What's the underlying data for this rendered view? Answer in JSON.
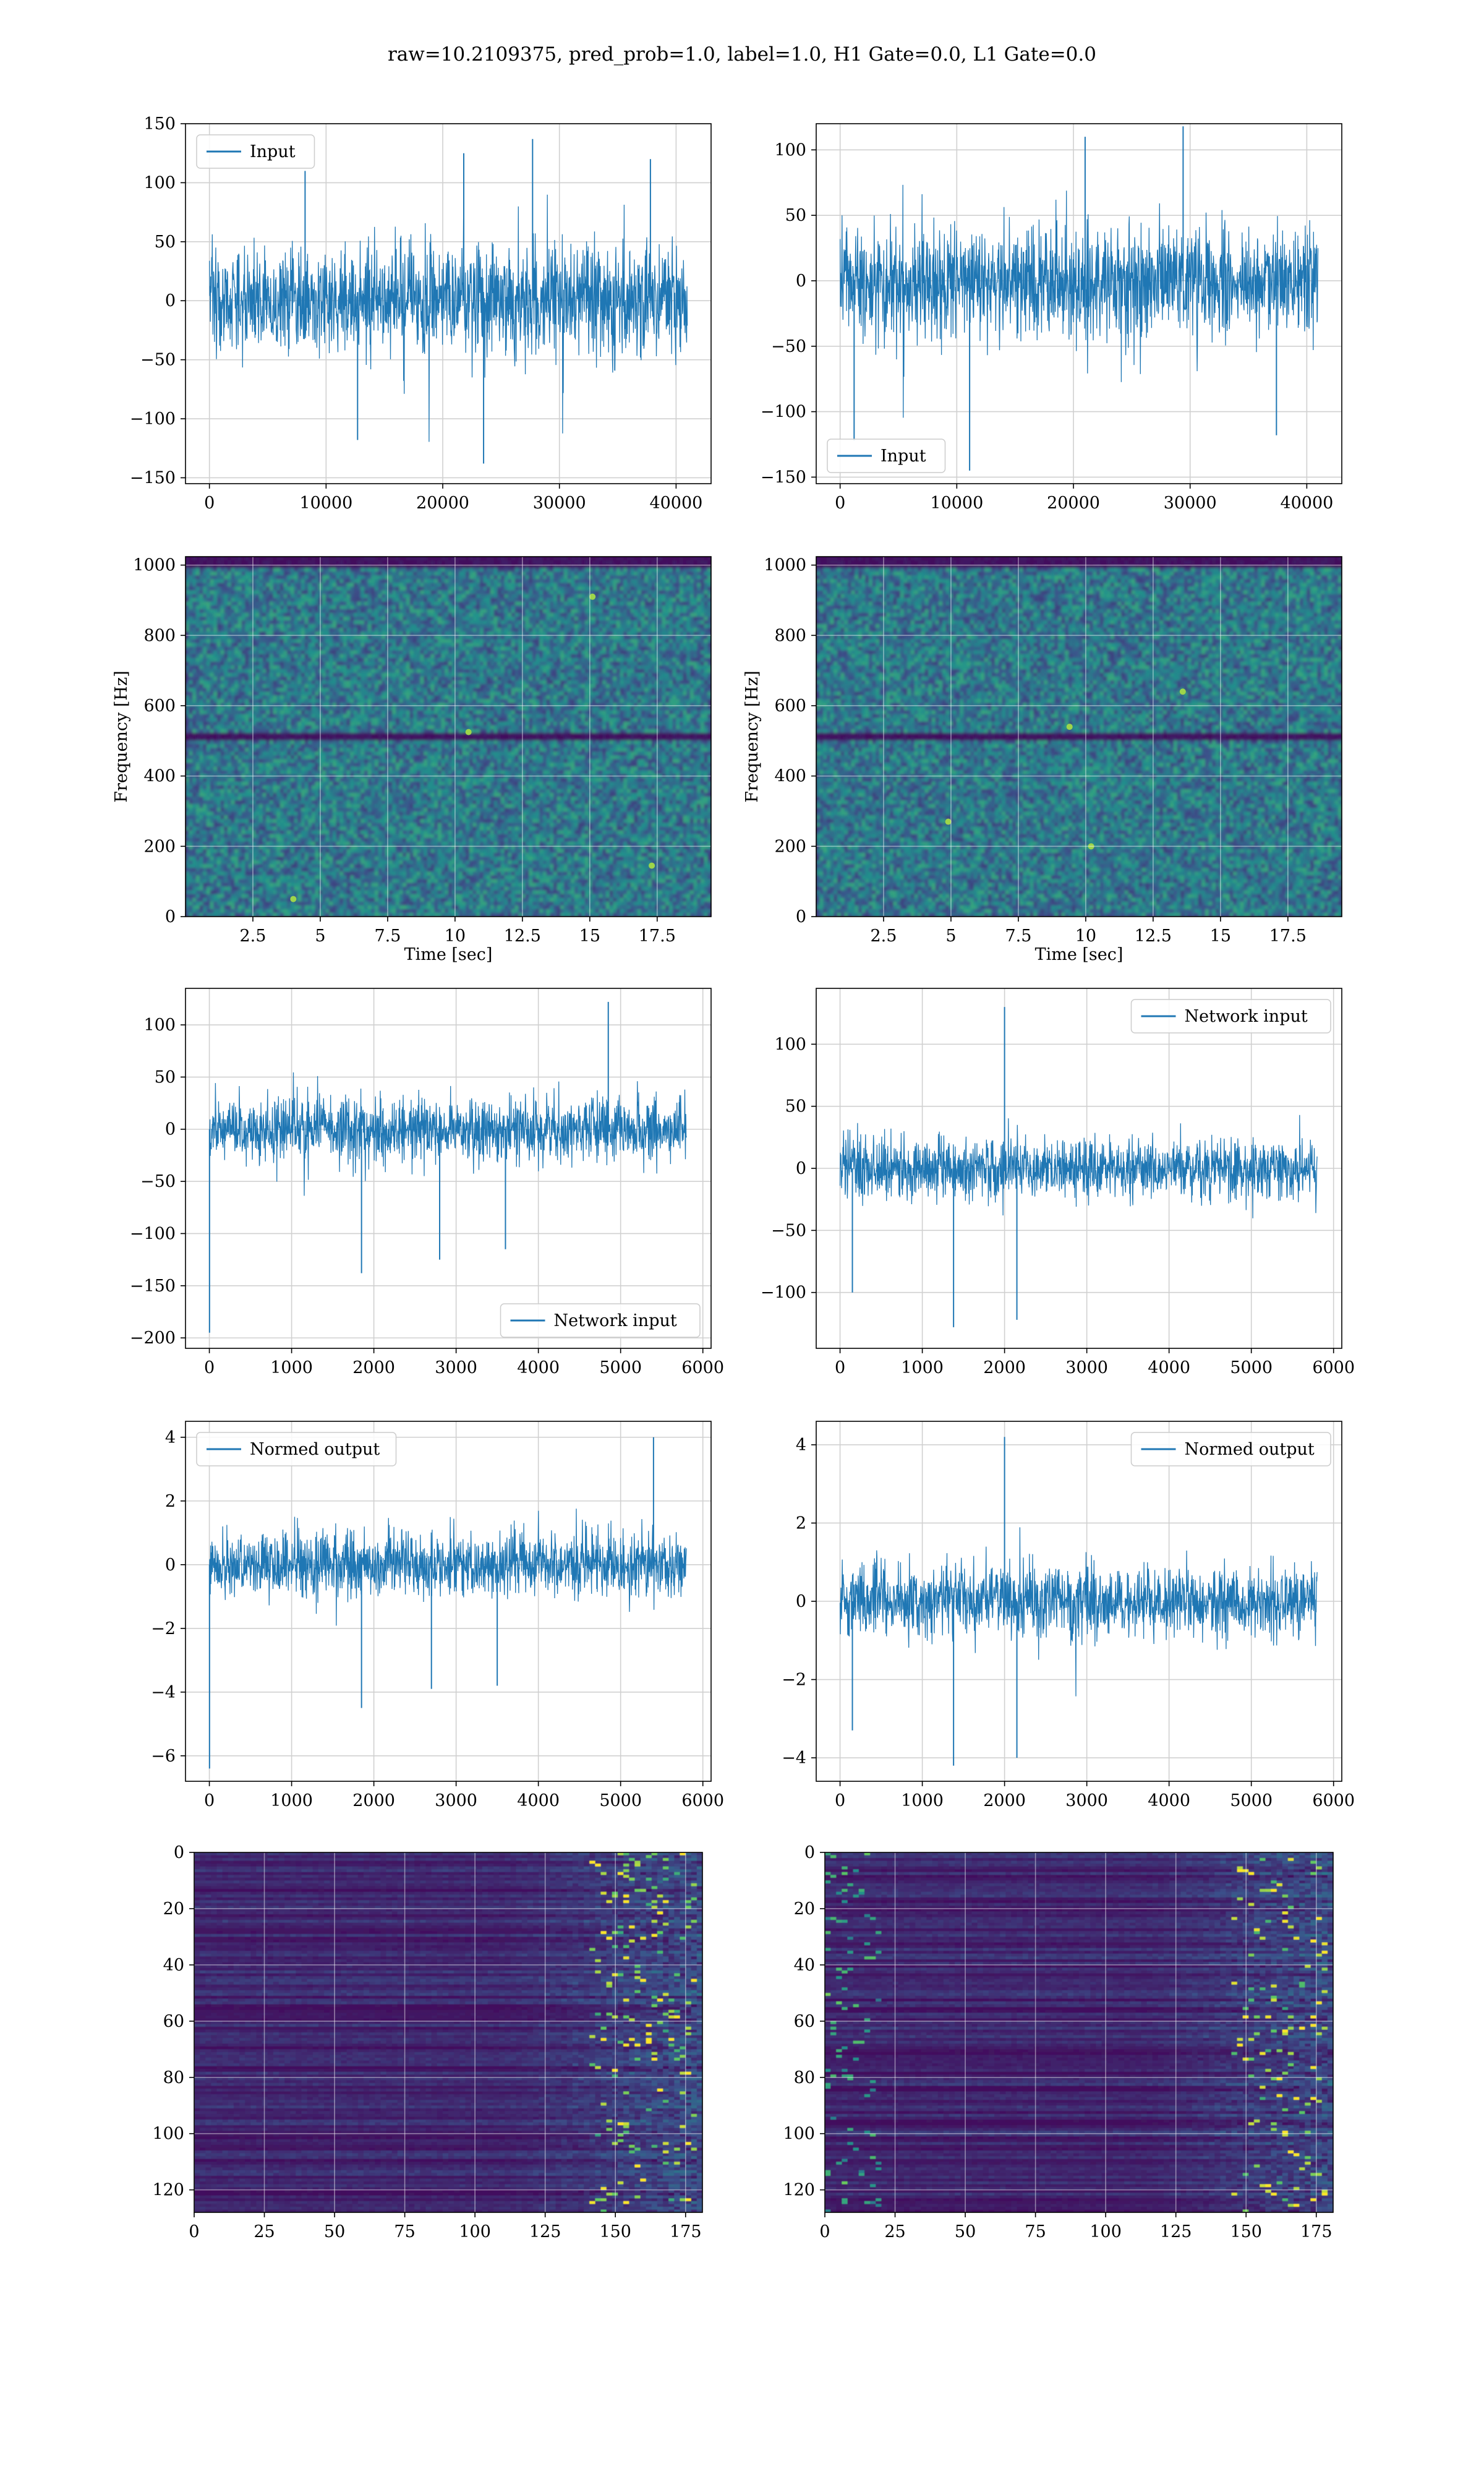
{
  "figure": {
    "suptitle": "raw=10.2109375, pred_prob=1.0, label=1.0, H1 Gate=0.0, L1 Gate=0.0"
  },
  "colors": {
    "line": "#1f77b4",
    "grid": "#d0d0d0",
    "viridis_dark": "#440154",
    "viridis_mid": "#21918c",
    "viridis_bright": "#fde725"
  },
  "chart_data": [
    {
      "id": "input-h1",
      "type": "line",
      "legend": "Input",
      "legend_position": "upper-left",
      "xlim": [
        -2050,
        43000
      ],
      "ylim": [
        -155,
        150
      ],
      "xticks": [
        0,
        10000,
        20000,
        30000,
        40000
      ],
      "yticks": [
        -150,
        -100,
        -50,
        0,
        50,
        100,
        150
      ],
      "x_range": [
        0,
        40960
      ],
      "amplitude": 40,
      "baseline": 0,
      "spikes": [
        {
          "x": 8200,
          "y": 110
        },
        {
          "x": 21800,
          "y": 125
        },
        {
          "x": 27700,
          "y": 137
        },
        {
          "x": 23500,
          "y": -138
        },
        {
          "x": 12700,
          "y": -118
        },
        {
          "x": 37800,
          "y": 120
        }
      ]
    },
    {
      "id": "input-l1",
      "type": "line",
      "legend": "Input",
      "legend_position": "lower-left",
      "xlim": [
        -2050,
        43000
      ],
      "ylim": [
        -155,
        120
      ],
      "xticks": [
        0,
        10000,
        20000,
        30000,
        40000
      ],
      "yticks": [
        -150,
        -100,
        -50,
        0,
        50,
        100
      ],
      "x_range": [
        0,
        40960
      ],
      "amplitude": 35,
      "baseline": 0,
      "spikes": [
        {
          "x": 11100,
          "y": -145
        },
        {
          "x": 29400,
          "y": 118
        },
        {
          "x": 1200,
          "y": -122
        },
        {
          "x": 37400,
          "y": -118
        },
        {
          "x": 21000,
          "y": 110
        }
      ]
    },
    {
      "id": "spectrogram-h1",
      "type": "heatmap",
      "colormap": "viridis",
      "xlabel": "Time [sec]",
      "ylabel": "Frequency [Hz]",
      "xlim": [
        0,
        19.5
      ],
      "ylim": [
        0,
        1024
      ],
      "xticks": [
        2.5,
        5.0,
        7.5,
        10.0,
        12.5,
        15.0,
        17.5
      ],
      "yticks": [
        0,
        200,
        400,
        600,
        800,
        1000
      ],
      "dark_bands_hz": [
        512,
        1010
      ],
      "hot_spots": [
        {
          "x": 15.1,
          "y": 910
        },
        {
          "x": 17.3,
          "y": 145
        },
        {
          "x": 10.5,
          "y": 525
        },
        {
          "x": 4.0,
          "y": 50
        }
      ]
    },
    {
      "id": "spectrogram-l1",
      "type": "heatmap",
      "colormap": "viridis",
      "xlabel": "Time [sec]",
      "ylabel": "Frequency [Hz]",
      "xlim": [
        0,
        19.5
      ],
      "ylim": [
        0,
        1024
      ],
      "xticks": [
        2.5,
        5.0,
        7.5,
        10.0,
        12.5,
        15.0,
        17.5
      ],
      "yticks": [
        0,
        200,
        400,
        600,
        800,
        1000
      ],
      "dark_bands_hz": [
        512,
        1010
      ],
      "hot_spots": [
        {
          "x": 9.4,
          "y": 540
        },
        {
          "x": 10.2,
          "y": 200
        },
        {
          "x": 4.9,
          "y": 270
        },
        {
          "x": 13.6,
          "y": 640
        }
      ]
    },
    {
      "id": "network-input-h1",
      "type": "line",
      "legend": "Network input",
      "legend_position": "lower-right",
      "xlim": [
        -290,
        6100
      ],
      "ylim": [
        -210,
        135
      ],
      "xticks": [
        0,
        1000,
        2000,
        3000,
        4000,
        5000,
        6000
      ],
      "yticks": [
        -200,
        -150,
        -100,
        -50,
        0,
        50,
        100
      ],
      "x_range": [
        0,
        5800
      ],
      "amplitude": 25,
      "baseline": 0,
      "spikes": [
        {
          "x": 2,
          "y": -195
        },
        {
          "x": 1850,
          "y": -138
        },
        {
          "x": 4850,
          "y": 122
        },
        {
          "x": 2800,
          "y": -125
        },
        {
          "x": 3600,
          "y": -115
        }
      ]
    },
    {
      "id": "network-input-l1",
      "type": "line",
      "legend": "Network input",
      "legend_position": "upper-right",
      "xlim": [
        -290,
        6100
      ],
      "ylim": [
        -145,
        145
      ],
      "xticks": [
        0,
        1000,
        2000,
        3000,
        4000,
        5000,
        6000
      ],
      "yticks": [
        -100,
        -50,
        0,
        50,
        100
      ],
      "x_range": [
        0,
        5800
      ],
      "amplitude": 20,
      "baseline": 0,
      "spikes": [
        {
          "x": 2000,
          "y": 130
        },
        {
          "x": 1380,
          "y": -128
        },
        {
          "x": 2150,
          "y": -122
        },
        {
          "x": 150,
          "y": -100
        }
      ]
    },
    {
      "id": "normed-output-h1",
      "type": "line",
      "legend": "Normed output",
      "legend_position": "upper-left",
      "xlim": [
        -290,
        6100
      ],
      "ylim": [
        -6.8,
        4.5
      ],
      "xticks": [
        0,
        1000,
        2000,
        3000,
        4000,
        5000,
        6000
      ],
      "yticks": [
        -6,
        -4,
        -2,
        0,
        2,
        4
      ],
      "x_range": [
        0,
        5800
      ],
      "amplitude": 0.8,
      "baseline": 0,
      "spikes": [
        {
          "x": 2,
          "y": -6.4
        },
        {
          "x": 1850,
          "y": -4.5
        },
        {
          "x": 5400,
          "y": 4.0
        },
        {
          "x": 2700,
          "y": -3.9
        },
        {
          "x": 3500,
          "y": -3.8
        }
      ]
    },
    {
      "id": "normed-output-l1",
      "type": "line",
      "legend": "Normed output",
      "legend_position": "upper-right",
      "xlim": [
        -290,
        6100
      ],
      "ylim": [
        -4.6,
        4.6
      ],
      "xticks": [
        0,
        1000,
        2000,
        3000,
        4000,
        5000,
        6000
      ],
      "yticks": [
        -4,
        -2,
        0,
        2,
        4
      ],
      "x_range": [
        0,
        5800
      ],
      "amplitude": 0.75,
      "baseline": 0,
      "spikes": [
        {
          "x": 2000,
          "y": 4.2
        },
        {
          "x": 1380,
          "y": -4.2
        },
        {
          "x": 2150,
          "y": -4.0
        },
        {
          "x": 150,
          "y": -3.3
        }
      ]
    },
    {
      "id": "features-h1",
      "type": "heatmap",
      "colormap": "viridis",
      "xlim": [
        0,
        181
      ],
      "ylim": [
        128,
        0
      ],
      "xticks": [
        0,
        25,
        50,
        75,
        100,
        125,
        150,
        175
      ],
      "yticks": [
        0,
        20,
        40,
        60,
        80,
        100,
        120
      ],
      "bright_column_range": [
        140,
        178
      ],
      "bright_left_edge": false
    },
    {
      "id": "features-l1",
      "type": "heatmap",
      "colormap": "viridis",
      "xlim": [
        0,
        181
      ],
      "ylim": [
        128,
        0
      ],
      "xticks": [
        0,
        25,
        50,
        75,
        100,
        125,
        150,
        175
      ],
      "yticks": [
        0,
        20,
        40,
        60,
        80,
        100,
        120
      ],
      "bright_column_range": [
        145,
        178
      ],
      "bright_left_edge": true
    }
  ]
}
